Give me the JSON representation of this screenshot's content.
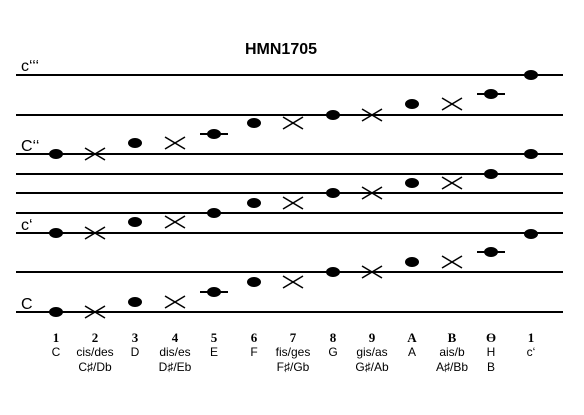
{
  "title": "HMN1705",
  "octave_labels": [
    "c‘‘‘",
    "C‘‘",
    "c‘",
    "C"
  ],
  "columns": [
    {
      "num": "1",
      "name": "C",
      "alt": ""
    },
    {
      "num": "2",
      "name": "cis/des",
      "alt": "C♯/Db"
    },
    {
      "num": "3",
      "name": "D",
      "alt": ""
    },
    {
      "num": "4",
      "name": "dis/es",
      "alt": "D♯/Eb"
    },
    {
      "num": "5",
      "name": "E",
      "alt": ""
    },
    {
      "num": "6",
      "name": "F",
      "alt": ""
    },
    {
      "num": "7",
      "name": "fis/ges",
      "alt": "F♯/Gb"
    },
    {
      "num": "8",
      "name": "G",
      "alt": ""
    },
    {
      "num": "9",
      "name": "gis/as",
      "alt": "G♯/Ab"
    },
    {
      "num": "A",
      "name": "A",
      "alt": ""
    },
    {
      "num": "B",
      "name": "ais/b",
      "alt": "A♯/Bb"
    },
    {
      "num": "ϴ",
      "name": "H",
      "alt": "B"
    },
    {
      "num": "1",
      "name": "c‘",
      "alt": ""
    }
  ],
  "note_pattern": [
    "dot",
    "cross",
    "dot",
    "cross",
    "dot-ledger",
    "dot",
    "cross",
    "dot",
    "cross",
    "dot",
    "cross",
    "dot-ledger",
    "dot"
  ]
}
